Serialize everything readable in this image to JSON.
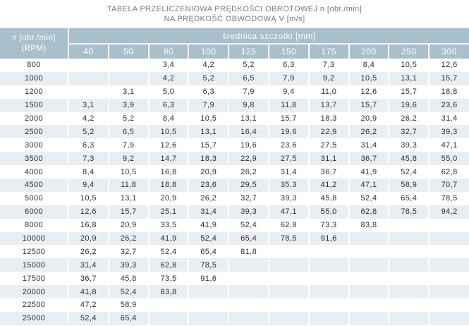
{
  "title": {
    "line1": "TABELA PRZELICZENIOWA PRĘDKOŚCI OBROTOWEJ n [obr./min]",
    "line2": "NA PRĘDKOŚĆ OBWODOWĄ V [m/s]"
  },
  "chart_data": {
    "type": "table",
    "title": "TABELA PRZELICZENIOWA PRĘDKOŚCI OBROTOWEJ n [obr./min] NA PRĘDKOŚĆ OBWODOWĄ V [m/s]",
    "corner_header_line1": "n [obr./min]",
    "corner_header_line2": "(RPM)",
    "span_header": "średnica szczotki [mm]",
    "categories": [
      "40",
      "50",
      "80",
      "100",
      "125",
      "150",
      "175",
      "200",
      "250",
      "300"
    ],
    "rows": [
      {
        "rpm": "800",
        "values": [
          "",
          "",
          "3,4",
          "4,2",
          "5,2",
          "6,3",
          "7,3",
          "8,4",
          "10,5",
          "12,6"
        ]
      },
      {
        "rpm": "1000",
        "values": [
          "",
          "",
          "4,2",
          "5,2",
          "6,5",
          "7,9",
          "9,2",
          "10,5",
          "13,1",
          "15,7"
        ]
      },
      {
        "rpm": "1200",
        "values": [
          "",
          "3,1",
          "5,0",
          "6,3",
          "7,9",
          "9,4",
          "11,0",
          "12,6",
          "15,7",
          "18,8"
        ]
      },
      {
        "rpm": "1500",
        "values": [
          "3,1",
          "3,9",
          "6,3",
          "7,9",
          "9,8",
          "11,8",
          "13,7",
          "15,7",
          "19,6",
          "23,6"
        ]
      },
      {
        "rpm": "2000",
        "values": [
          "4,2",
          "5,2",
          "8,4",
          "10,5",
          "13,1",
          "15,7",
          "18,3",
          "20,9",
          "26,2",
          "31,4"
        ]
      },
      {
        "rpm": "2500",
        "values": [
          "5,2",
          "6,5",
          "10,5",
          "13,1",
          "16,4",
          "19,6",
          "22,9",
          "26,2",
          "32,7",
          "39,3"
        ]
      },
      {
        "rpm": "3000",
        "values": [
          "6,3",
          "7,9",
          "12,6",
          "15,7",
          "19,6",
          "23,6",
          "27,5",
          "31,4",
          "39,3",
          "47,1"
        ]
      },
      {
        "rpm": "3500",
        "values": [
          "7,3",
          "9,2",
          "14,7",
          "18,3",
          "22,9",
          "27,5",
          "31,1",
          "36,7",
          "45,8",
          "55,0"
        ]
      },
      {
        "rpm": "4000",
        "values": [
          "8,4",
          "10,5",
          "16,8",
          "20,9",
          "26,2",
          "31,4",
          "36,7",
          "41,9",
          "52,4",
          "62,8"
        ]
      },
      {
        "rpm": "4500",
        "values": [
          "9,4",
          "11,8",
          "18,8",
          "23,6",
          "29,5",
          "35,3",
          "41,2",
          "47,1",
          "58,9",
          "70,7"
        ]
      },
      {
        "rpm": "5000",
        "values": [
          "10,5",
          "13,1",
          "20,9",
          "26,2",
          "32,7",
          "39,3",
          "45,8",
          "52,4",
          "65,4",
          "78,5"
        ]
      },
      {
        "rpm": "6000",
        "values": [
          "12,6",
          "15,7",
          "25,1",
          "31,4",
          "39,3",
          "47,1",
          "55,0",
          "62,8",
          "78,5",
          "94,2"
        ]
      },
      {
        "rpm": "8000",
        "values": [
          "16,8",
          "20,9",
          "33,5",
          "41,9",
          "52,4",
          "62,8",
          "73,3",
          "83,8",
          "",
          ""
        ]
      },
      {
        "rpm": "10000",
        "values": [
          "20,9",
          "26,2",
          "41,9",
          "52,4",
          "65,4",
          "78,5",
          "91,6",
          "",
          "",
          ""
        ]
      },
      {
        "rpm": "12500",
        "values": [
          "26,2",
          "32,7",
          "52,4",
          "65,4",
          "81,8",
          "",
          "",
          "",
          "",
          ""
        ]
      },
      {
        "rpm": "15000",
        "values": [
          "31,4",
          "39,3",
          "62,8",
          "78,5",
          "",
          "",
          "",
          "",
          "",
          ""
        ]
      },
      {
        "rpm": "17500",
        "values": [
          "36,7",
          "45,8",
          "73,5",
          "91,6",
          "",
          "",
          "",
          "",
          "",
          ""
        ]
      },
      {
        "rpm": "20000",
        "values": [
          "41,8",
          "52,4",
          "83,8",
          "",
          "",
          "",
          "",
          "",
          "",
          ""
        ]
      },
      {
        "rpm": "22500",
        "values": [
          "47,2",
          "58,9",
          "",
          "",
          "",
          "",
          "",
          "",
          "",
          ""
        ]
      },
      {
        "rpm": "25000",
        "values": [
          "52,4",
          "65,4",
          "",
          "",
          "",
          "",
          "",
          "",
          "",
          ""
        ]
      }
    ]
  },
  "colors": {
    "header_bg": "#a7c0cb",
    "stripe_bg": "#e9eef3",
    "header_text": "#ffffff",
    "cell_text": "#2e2e2e",
    "title_text": "#7c7c7c"
  }
}
